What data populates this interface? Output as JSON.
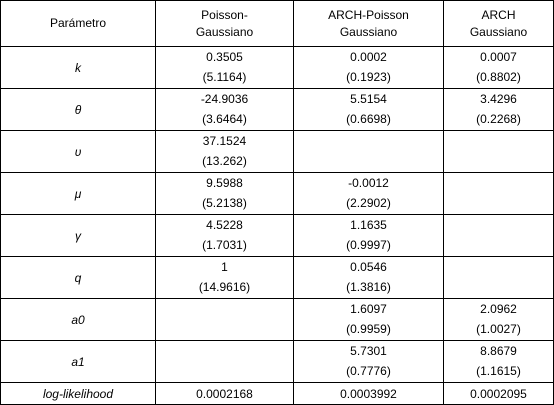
{
  "table": {
    "header": [
      [
        "Parámetro"
      ],
      [
        "Poisson-",
        "Gaussiano"
      ],
      [
        "ARCH-Poisson",
        "Gaussiano"
      ],
      [
        "ARCH",
        "Gaussiano"
      ]
    ],
    "rows": [
      {
        "label": "k",
        "cells": [
          [
            "0.3505",
            "(5.1164)"
          ],
          [
            "0.0002",
            "(0.1923)"
          ],
          [
            "0.0007",
            "(0.8802)"
          ]
        ]
      },
      {
        "label": "θ",
        "cells": [
          [
            "-24.9036",
            "(3.6464)"
          ],
          [
            "5.5154",
            "(0.6698)"
          ],
          [
            "3.4296",
            "(0.2268)"
          ]
        ]
      },
      {
        "label": "υ",
        "cells": [
          [
            "37.1524",
            "(13.262)"
          ],
          [],
          []
        ]
      },
      {
        "label": "μ",
        "cells": [
          [
            "9.5988",
            "(5.2138)"
          ],
          [
            "-0.0012",
            "(2.2902)"
          ],
          []
        ]
      },
      {
        "label": "γ",
        "cells": [
          [
            "4.5228",
            "(1.7031)"
          ],
          [
            "1.1635",
            "(0.9997)"
          ],
          []
        ]
      },
      {
        "label": "q",
        "cells": [
          [
            "1",
            "(14.9616)"
          ],
          [
            "0.0546",
            "(1.3816)"
          ],
          []
        ]
      },
      {
        "label": "a0",
        "cells": [
          [],
          [
            "1.6097",
            "(0.9959)"
          ],
          [
            "2.0962",
            "(1.0027)"
          ]
        ]
      },
      {
        "label": "a1",
        "cells": [
          [],
          [
            "5.7301",
            "(0.7776)"
          ],
          [
            "8.8679",
            "(1.1615)"
          ]
        ]
      },
      {
        "label": "log-likelihood",
        "cells": [
          [
            "0.0002168"
          ],
          [
            "0.0003992"
          ],
          [
            "0.0002095"
          ]
        ]
      }
    ]
  }
}
